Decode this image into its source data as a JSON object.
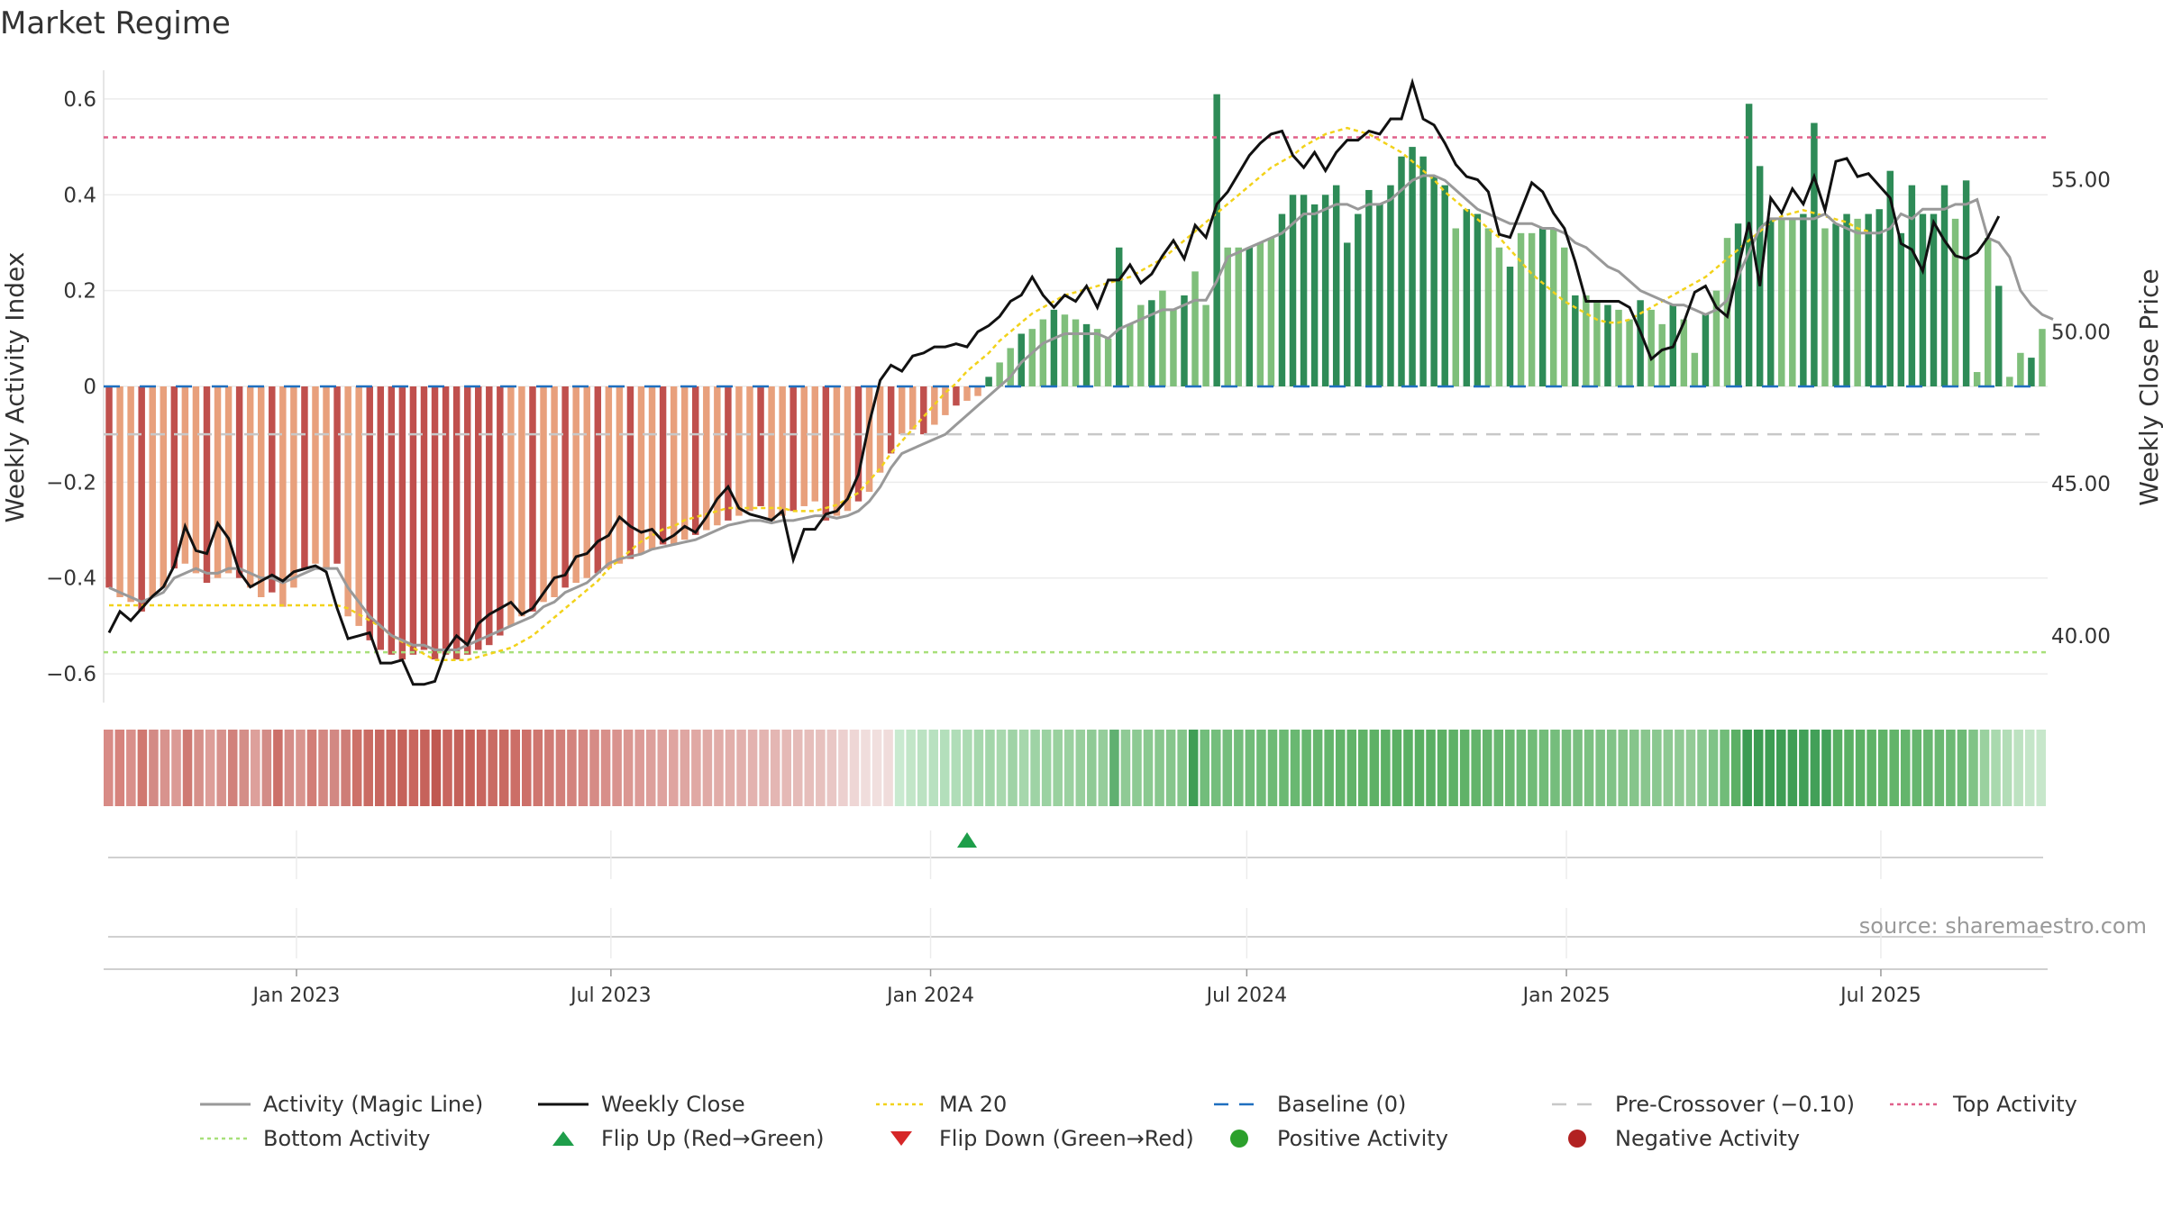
{
  "title": "Market Regime",
  "source": "source: sharemaestro.com",
  "colors": {
    "neg_dark": "#c0504d",
    "neg_light": "#e8a07c",
    "pos_dark": "#2e8b57",
    "pos_light": "#7fbf7b",
    "magic_line": "#999999",
    "weekly_close": "#111111",
    "ma20": "#f2d21b",
    "baseline": "#1f6fbf",
    "pre_crossover": "#c8c8c8",
    "top_activity": "#e0608a",
    "bottom_activity": "#a8e07a",
    "flip_up": "#1e9e4a",
    "flip_down": "#d62728",
    "positive": "#2ca02c",
    "negative": "#b22222"
  },
  "chart_data": {
    "type": "bar",
    "title": "Market Regime",
    "ylabel": "Weekly Activity Index",
    "y2label": "Weekly Close Price",
    "ylim": [
      -0.66,
      0.66
    ],
    "y2lim": [
      37.8,
      58.6
    ],
    "yticks": [
      "0.6",
      "0.4",
      "0.2",
      "0",
      "−0.2",
      "−0.4",
      "−0.6"
    ],
    "ytick_values": [
      0.6,
      0.4,
      0.2,
      0,
      -0.2,
      -0.4,
      -0.6
    ],
    "y2ticks": [
      "55.00",
      "50.00",
      "45.00",
      "40.00"
    ],
    "y2tick_values": [
      55,
      50,
      45,
      40
    ],
    "x_start": "2022-09-12",
    "x_end": "2025-10-05",
    "xticks": [
      "Jan 2023",
      "Jul 2023",
      "Jan 2024",
      "Jul 2024",
      "Jan 2025",
      "Jul 2025"
    ],
    "xtick_dates": [
      "2023-01-01",
      "2023-07-01",
      "2024-01-01",
      "2024-07-01",
      "2025-01-01",
      "2025-07-01"
    ],
    "grid": true,
    "reference_lines": {
      "baseline": 0,
      "pre_crossover": -0.1,
      "top_activity": 0.52,
      "bottom_activity": -0.555
    },
    "flip_up_date": "2024-01-22",
    "activity_index": [
      -0.42,
      -0.44,
      -0.45,
      -0.47,
      -0.44,
      -0.42,
      -0.38,
      -0.37,
      -0.39,
      -0.41,
      -0.4,
      -0.39,
      -0.4,
      -0.42,
      -0.44,
      -0.43,
      -0.46,
      -0.42,
      -0.38,
      -0.37,
      -0.38,
      -0.37,
      -0.48,
      -0.5,
      -0.53,
      -0.55,
      -0.56,
      -0.57,
      -0.56,
      -0.55,
      -0.57,
      -0.56,
      -0.57,
      -0.56,
      -0.55,
      -0.54,
      -0.52,
      -0.5,
      -0.48,
      -0.47,
      -0.45,
      -0.44,
      -0.42,
      -0.41,
      -0.4,
      -0.39,
      -0.38,
      -0.37,
      -0.36,
      -0.35,
      -0.34,
      -0.33,
      -0.33,
      -0.32,
      -0.31,
      -0.3,
      -0.29,
      -0.28,
      -0.27,
      -0.26,
      -0.25,
      -0.28,
      -0.27,
      -0.26,
      -0.25,
      -0.24,
      -0.28,
      -0.27,
      -0.26,
      -0.24,
      -0.22,
      -0.18,
      -0.14,
      -0.1,
      -0.09,
      -0.1,
      -0.08,
      -0.06,
      -0.04,
      -0.03,
      -0.02,
      0.02,
      0.05,
      0.08,
      0.11,
      0.12,
      0.14,
      0.16,
      0.15,
      0.14,
      0.13,
      0.12,
      0.1,
      0.29,
      0.13,
      0.17,
      0.18,
      0.2,
      0.16,
      0.19,
      0.24,
      0.17,
      0.61,
      0.29,
      0.29,
      0.29,
      0.3,
      0.31,
      0.36,
      0.4,
      0.4,
      0.38,
      0.4,
      0.42,
      0.3,
      0.36,
      0.41,
      0.38,
      0.42,
      0.48,
      0.5,
      0.48,
      0.44,
      0.42,
      0.33,
      0.37,
      0.36,
      0.33,
      0.29,
      0.25,
      0.32,
      0.32,
      0.33,
      0.33,
      0.29,
      0.19,
      0.19,
      0.18,
      0.17,
      0.16,
      0.14,
      0.18,
      0.16,
      0.13,
      0.17,
      0.14,
      0.07,
      0.15,
      0.2,
      0.31,
      0.34,
      0.59,
      0.46,
      0.35,
      0.35,
      0.35,
      0.36,
      0.55,
      0.33,
      0.34,
      0.36,
      0.35,
      0.36,
      0.37,
      0.45,
      0.32,
      0.42,
      0.36,
      0.36,
      0.42,
      0.35,
      0.43,
      0.03,
      0.31,
      0.21,
      0.02,
      0.07,
      0.06,
      0.12
    ],
    "magic_line": [
      -0.42,
      -0.43,
      -0.44,
      -0.45,
      -0.44,
      -0.43,
      -0.4,
      -0.39,
      -0.38,
      -0.39,
      -0.39,
      -0.38,
      -0.38,
      -0.39,
      -0.4,
      -0.4,
      -0.41,
      -0.4,
      -0.39,
      -0.38,
      -0.38,
      -0.38,
      -0.42,
      -0.45,
      -0.48,
      -0.5,
      -0.52,
      -0.53,
      -0.54,
      -0.54,
      -0.55,
      -0.55,
      -0.55,
      -0.54,
      -0.53,
      -0.52,
      -0.51,
      -0.5,
      -0.49,
      -0.48,
      -0.46,
      -0.45,
      -0.43,
      -0.42,
      -0.41,
      -0.39,
      -0.37,
      -0.36,
      -0.355,
      -0.35,
      -0.34,
      -0.335,
      -0.33,
      -0.325,
      -0.32,
      -0.31,
      -0.3,
      -0.29,
      -0.285,
      -0.28,
      -0.28,
      -0.285,
      -0.28,
      -0.28,
      -0.275,
      -0.27,
      -0.27,
      -0.275,
      -0.27,
      -0.26,
      -0.24,
      -0.21,
      -0.17,
      -0.14,
      -0.13,
      -0.12,
      -0.11,
      -0.1,
      -0.08,
      -0.06,
      -0.04,
      -0.02,
      0.0,
      0.02,
      0.05,
      0.07,
      0.09,
      0.1,
      0.11,
      0.11,
      0.11,
      0.11,
      0.1,
      0.12,
      0.13,
      0.14,
      0.15,
      0.16,
      0.16,
      0.17,
      0.18,
      0.18,
      0.22,
      0.27,
      0.28,
      0.29,
      0.3,
      0.31,
      0.32,
      0.34,
      0.36,
      0.36,
      0.37,
      0.38,
      0.38,
      0.37,
      0.38,
      0.38,
      0.39,
      0.41,
      0.43,
      0.44,
      0.44,
      0.43,
      0.41,
      0.39,
      0.37,
      0.36,
      0.35,
      0.34,
      0.34,
      0.34,
      0.33,
      0.33,
      0.32,
      0.3,
      0.29,
      0.27,
      0.25,
      0.24,
      0.22,
      0.2,
      0.19,
      0.18,
      0.17,
      0.17,
      0.16,
      0.15,
      0.16,
      0.18,
      0.23,
      0.28,
      0.33,
      0.35,
      0.35,
      0.35,
      0.35,
      0.35,
      0.36,
      0.34,
      0.33,
      0.32,
      0.32,
      0.32,
      0.33,
      0.36,
      0.35,
      0.37,
      0.37,
      0.37,
      0.38,
      0.38,
      0.39,
      0.31,
      0.3,
      0.27,
      0.2,
      0.17,
      0.15,
      0.14
    ],
    "weekly_close": [
      40.1,
      40.8,
      40.5,
      40.9,
      41.3,
      41.6,
      42.3,
      43.6,
      42.8,
      42.7,
      43.7,
      43.2,
      42.1,
      41.6,
      41.8,
      42.0,
      41.8,
      42.1,
      42.2,
      42.3,
      42.1,
      40.9,
      39.9,
      40.0,
      40.1,
      39.1,
      39.1,
      39.2,
      38.4,
      38.4,
      38.5,
      39.5,
      40.0,
      39.7,
      40.4,
      40.7,
      40.9,
      41.1,
      40.7,
      40.9,
      41.4,
      41.9,
      42.0,
      42.6,
      42.7,
      43.1,
      43.3,
      43.9,
      43.6,
      43.4,
      43.5,
      43.1,
      43.3,
      43.6,
      43.4,
      43.9,
      44.5,
      44.9,
      44.2,
      44.0,
      43.9,
      43.8,
      44.1,
      42.5,
      43.5,
      43.5,
      44.0,
      44.1,
      44.5,
      45.3,
      47.0,
      48.4,
      48.9,
      48.7,
      49.2,
      49.3,
      49.5,
      49.5,
      49.6,
      49.5,
      50.0,
      50.2,
      50.5,
      51.0,
      51.2,
      51.8,
      51.2,
      50.8,
      51.2,
      51.0,
      51.5,
      50.8,
      51.7,
      51.7,
      52.2,
      51.6,
      51.9,
      52.5,
      53.0,
      52.4,
      53.5,
      53.1,
      54.2,
      54.6,
      55.2,
      55.8,
      56.2,
      56.5,
      56.6,
      55.8,
      55.4,
      55.9,
      55.3,
      55.9,
      56.3,
      56.3,
      56.6,
      56.5,
      57.0,
      57.0,
      58.2,
      57.0,
      56.8,
      56.2,
      55.5,
      55.1,
      55.0,
      54.6,
      53.2,
      53.1,
      54.0,
      54.9,
      54.6,
      53.9,
      53.4,
      52.3,
      51.0,
      51.0,
      51.0,
      51.0,
      50.8,
      50.0,
      49.1,
      49.4,
      49.5,
      50.3,
      51.3,
      51.5,
      50.8,
      50.5,
      52.1,
      53.6,
      51.5,
      54.4,
      53.9,
      54.7,
      54.2,
      55.1,
      54.0,
      55.6,
      55.7,
      55.1,
      55.2,
      54.8,
      54.4,
      52.9,
      52.7,
      52.0,
      53.6,
      53.0,
      52.5,
      52.4,
      52.6,
      53.1,
      53.8
    ],
    "ma20": [
      41.0,
      41.0,
      41.0,
      41.0,
      41.0,
      41.0,
      41.0,
      41.0,
      41.0,
      41.0,
      41.0,
      41.0,
      41.0,
      41.0,
      41.0,
      41.0,
      41.0,
      41.0,
      41.0,
      41.0,
      41.0,
      41.0,
      40.9,
      40.7,
      40.5,
      40.3,
      40.0,
      39.8,
      39.6,
      39.4,
      39.2,
      39.2,
      39.2,
      39.2,
      39.3,
      39.4,
      39.5,
      39.6,
      39.8,
      40.0,
      40.3,
      40.6,
      40.9,
      41.2,
      41.5,
      41.8,
      42.2,
      42.5,
      42.8,
      43.1,
      43.3,
      43.5,
      43.6,
      43.8,
      43.9,
      44.0,
      44.1,
      44.2,
      44.2,
      44.2,
      44.2,
      44.2,
      44.2,
      44.1,
      44.1,
      44.1,
      44.2,
      44.3,
      44.5,
      44.7,
      45.1,
      45.5,
      46.0,
      46.4,
      46.8,
      47.2,
      47.6,
      48.0,
      48.3,
      48.7,
      49.0,
      49.3,
      49.7,
      50.0,
      50.3,
      50.6,
      50.8,
      51.0,
      51.2,
      51.3,
      51.4,
      51.5,
      51.6,
      51.7,
      51.8,
      52.0,
      52.2,
      52.4,
      52.7,
      53.0,
      53.3,
      53.6,
      53.9,
      54.2,
      54.5,
      54.8,
      55.1,
      55.4,
      55.6,
      55.8,
      56.1,
      56.3,
      56.5,
      56.6,
      56.7,
      56.6,
      56.5,
      56.3,
      56.1,
      55.9,
      55.6,
      55.3,
      55.0,
      54.6,
      54.3,
      54.0,
      53.7,
      53.4,
      53.1,
      52.7,
      52.3,
      51.9,
      51.6,
      51.3,
      51.0,
      50.8,
      50.6,
      50.4,
      50.3,
      50.3,
      50.4,
      50.6,
      50.8,
      51.0,
      51.2,
      51.4,
      51.6,
      51.8,
      52.1,
      52.4,
      52.7,
      53.0,
      53.3,
      53.6,
      53.8,
      53.9,
      54.0,
      53.9,
      53.8,
      53.7,
      53.6,
      53.4,
      53.3
    ],
    "regime_strip_colors": [
      "#d88b86",
      "#d6837d",
      "#d98f8a",
      "#d07870",
      "#d38a85",
      "#d8938e",
      "#db9a95",
      "#cf7a73",
      "#d6908a",
      "#dd9e99",
      "#d7928d",
      "#d1817b",
      "#d48e88",
      "#dda09b",
      "#d38c87",
      "#cc7069",
      "#d58d88",
      "#d9958f",
      "#d27e77",
      "#d38882",
      "#d28883",
      "#ce7d77",
      "#cd7169",
      "#ca6b63",
      "#c76760",
      "#c8675f",
      "#c5625a",
      "#c9665e",
      "#c6625b",
      "#c05850",
      "#c9665f",
      "#c4615a",
      "#c66159",
      "#c8655e",
      "#c96b64",
      "#c96a62",
      "#cc6e67",
      "#cd7069",
      "#cf766f",
      "#d07b75",
      "#d27f79",
      "#d3837d",
      "#d58782",
      "#d68b86",
      "#d88f8a",
      "#d9938e",
      "#db9792",
      "#dc9b97",
      "#dd9f9b",
      "#dea29e",
      "#dfa4a0",
      "#dfa6a2",
      "#e0a8a4",
      "#e0aaa6",
      "#e1aca8",
      "#e2afab",
      "#e2b0ad",
      "#e3b2af",
      "#e3b4b1",
      "#e4b6b3",
      "#e5b9b6",
      "#e5bbb8",
      "#e6bebb",
      "#e7c1be",
      "#e9c7c5",
      "#ecd0cf",
      "#eed6d5",
      "#f0dddc",
      "#f1dfde",
      "#f0dcdb",
      "#c9ead0",
      "#c2e6c8",
      "#bbe2c2",
      "#b8e1c0",
      "#b3dfbb",
      "#b0ddb8",
      "#acdbb3",
      "#a6d8ad",
      "#a3d6aa",
      "#a8d8ae",
      "#9fd3a6",
      "#a6d7ac",
      "#9ed3a5",
      "#9bd2a2",
      "#9ad19f",
      "#9bd1a0",
      "#98cf9d",
      "#8fca95",
      "#95cd9b",
      "#60b071",
      "#8fca95",
      "#8dca93",
      "#8ac990",
      "#88c78e",
      "#86c68c",
      "#84c58a",
      "#3f9e55",
      "#72bd7b",
      "#74be7c",
      "#75be7d",
      "#73bd7b",
      "#71bc79",
      "#6fbb77",
      "#6dba75",
      "#6bb973",
      "#69b871",
      "#67b76f",
      "#66b66e",
      "#64b56c",
      "#62b46a",
      "#61b369",
      "#5fb267",
      "#5eb166",
      "#5cb065",
      "#5bb064",
      "#5ab063",
      "#59af62",
      "#5aaf63",
      "#5cb064",
      "#5eb166",
      "#60b268",
      "#63b46b",
      "#66b56e",
      "#68b770",
      "#6bb872",
      "#6db975",
      "#70bb77",
      "#72bc79",
      "#75bd7c",
      "#77be7e",
      "#7abf80",
      "#7cc182",
      "#7fc285",
      "#81c387",
      "#84c489",
      "#86c58b",
      "#89c68e",
      "#8bc890",
      "#8ec992",
      "#90ca94",
      "#93cb96",
      "#8ac890",
      "#7fc386",
      "#71bc79",
      "#5cb065",
      "#3c9c52",
      "#3c9c52",
      "#3d9d53",
      "#3e9d54",
      "#3f9e55",
      "#41a057",
      "#42a058",
      "#43a159",
      "#58af62",
      "#5ab063",
      "#5cb165",
      "#5eb266",
      "#60b368",
      "#62b46a",
      "#64b56c",
      "#66b66e",
      "#68b770",
      "#6ab872",
      "#6cb974",
      "#6eba76",
      "#80c387",
      "#9ad19f",
      "#a9d9ae",
      "#b2ddb7",
      "#bde2c1",
      "#c5e6c9",
      "#c7e7cb"
    ]
  },
  "legend": [
    {
      "label": "Activity (Magic Line)",
      "icon": "gray-line-icon"
    },
    {
      "label": "Weekly Close",
      "icon": "black-line-icon"
    },
    {
      "label": "MA 20",
      "icon": "yellow-dotted-line-icon"
    },
    {
      "label": "Baseline (0)",
      "icon": "blue-dashed-line-icon"
    },
    {
      "label": "Pre-Crossover (−0.10)",
      "icon": "gray-dashed-line-icon"
    },
    {
      "label": "Top Activity",
      "icon": "pink-dotted-line-icon"
    },
    {
      "label": "Bottom Activity",
      "icon": "green-dotted-line-icon"
    },
    {
      "label": "Flip Up (Red→Green)",
      "icon": "green-triangle-up-icon"
    },
    {
      "label": "Flip Down (Green→Red)",
      "icon": "red-triangle-down-icon"
    },
    {
      "label": "Positive Activity",
      "icon": "green-dot-icon"
    },
    {
      "label": "Negative Activity",
      "icon": "red-dot-icon"
    }
  ]
}
